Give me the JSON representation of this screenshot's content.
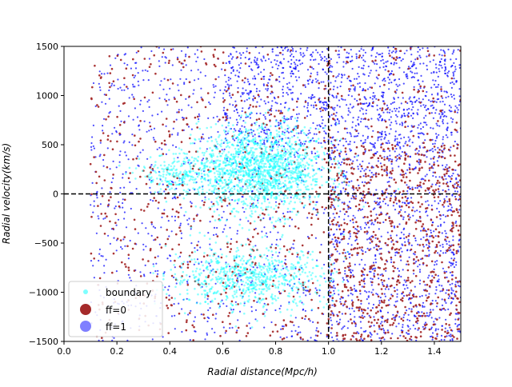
{
  "chart_data": {
    "type": "scatter",
    "title": "",
    "xlabel": "Radial distance",
    "xlabel_unit": "(Mpc/h)",
    "ylabel": "Radial velocity",
    "ylabel_unit": "(km/s)",
    "xlim": [
      0.0,
      1.5
    ],
    "ylim": [
      -1500,
      1500
    ],
    "xticks": [
      0.0,
      0.2,
      0.4,
      0.6,
      0.8,
      1.0,
      1.2,
      1.4
    ],
    "xtick_labels": [
      "0.0",
      "0.2",
      "0.4",
      "0.6",
      "0.8",
      "1.0",
      "1.2",
      "1.4"
    ],
    "yticks": [
      -1500,
      -1000,
      -500,
      0,
      500,
      1000,
      1500
    ],
    "ytick_labels": [
      "−1500",
      "−1000",
      "−500",
      "0",
      "500",
      "1000",
      "1500"
    ],
    "grid": false,
    "legend_position": "lower-left",
    "reference_lines": [
      {
        "orientation": "horizontal",
        "value": 0,
        "style": "dashed",
        "color": "#000000"
      },
      {
        "orientation": "vertical",
        "value": 1.0,
        "style": "dashed",
        "color": "#000000"
      }
    ],
    "series": [
      {
        "name": "ff=1",
        "color": "#0000ff",
        "clusters": [
          {
            "x_range": [
              0.6,
              1.5
            ],
            "y_range": [
              500,
              1500
            ],
            "count": 900
          },
          {
            "x_range": [
              0.1,
              1.5
            ],
            "y_range": [
              -1500,
              1500
            ],
            "count": 1500
          },
          {
            "x_range": [
              1.0,
              1.5
            ],
            "y_range": [
              -1500,
              500
            ],
            "count": 700
          }
        ]
      },
      {
        "name": "ff=0",
        "color": "#a52a2a",
        "clusters": [
          {
            "x_range": [
              0.1,
              1.5
            ],
            "y_range": [
              -1500,
              1500
            ],
            "count": 900
          },
          {
            "x_range": [
              1.0,
              1.5
            ],
            "y_range": [
              -1500,
              500
            ],
            "count": 600
          }
        ]
      },
      {
        "name": "boundary",
        "color": "#00ffff",
        "clusters": [
          {
            "center": [
              0.75,
              250
            ],
            "spread": [
              0.12,
              220
            ],
            "count": 1500
          },
          {
            "center": [
              0.7,
              -850
            ],
            "spread": [
              0.15,
              150
            ],
            "count": 700
          },
          {
            "center": [
              0.45,
              200
            ],
            "spread": [
              0.08,
              100
            ],
            "count": 250
          }
        ]
      }
    ]
  }
}
